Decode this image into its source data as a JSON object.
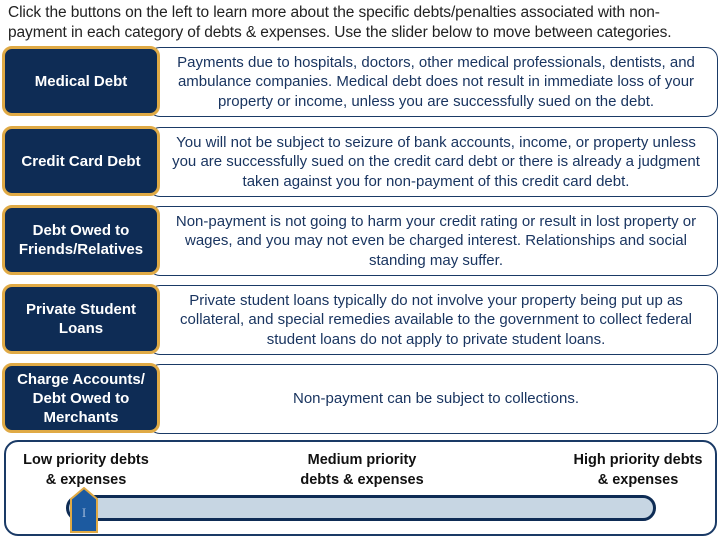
{
  "intro": "Click the buttons on the left to learn more about the specific debts/penalties associated with non-payment in each category of debts & expenses. Use the slider below to move between categories.",
  "categories": [
    {
      "label": "Medical Debt",
      "description": "Payments due to hospitals, doctors, other medical professionals, dentists, and ambulance companies. Medical debt does not result in immediate loss of your property or income, unless you are successfully sued on the debt."
    },
    {
      "label": "Credit Card Debt",
      "description": "You will not be subject to seizure of bank accounts, income, or property unless you are successfully sued on the credit card debt or there is already a judgment taken against you for non-payment of this credit card debt."
    },
    {
      "label": "Debt Owed to Friends/Relatives",
      "description": "Non-payment is not going to harm your credit rating or result in lost property or wages, and you may not even be charged interest. Relationships and social standing may suffer."
    },
    {
      "label": "Private Student Loans",
      "description": "Private student loans typically do not involve your property being put up as collateral, and special remedies available to the government to collect federal student loans do not apply to private student loans."
    },
    {
      "label": "Charge Accounts/ Debt Owed to Merchants",
      "description": "Non-payment can be subject to collections."
    }
  ],
  "slider": {
    "low": "Low priority debts & expenses",
    "medium": "Medium priority debts & expenses",
    "high": "High priority debts & expenses",
    "value": 0,
    "thumb_glyph": "I"
  },
  "colors": {
    "navy": "#0e2c55",
    "gold": "#e0aa45",
    "track": "#c7d6e3",
    "thumb": "#1c5aa0"
  }
}
